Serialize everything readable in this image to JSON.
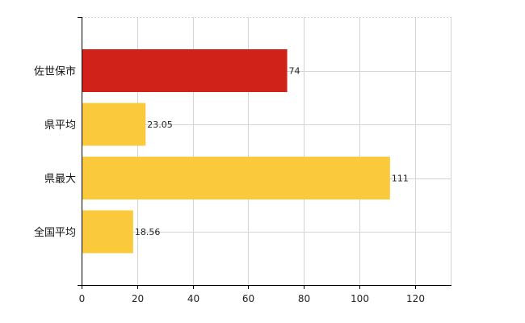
{
  "chart_data": {
    "type": "bar",
    "orientation": "horizontal",
    "title": "",
    "xlabel": "",
    "ylabel": "",
    "categories": [
      "佐世保市",
      "県平均",
      "県最大",
      "全国平均"
    ],
    "values": [
      74,
      23.05,
      111,
      18.56
    ],
    "value_labels": [
      "74",
      "23.05",
      "111",
      "18.56"
    ],
    "bar_colors": [
      "#d1221a",
      "#fac93c",
      "#fac93c",
      "#fac93c"
    ],
    "xlim": [
      0,
      133
    ],
    "xticks": [
      0,
      20,
      40,
      60,
      80,
      100,
      120
    ],
    "grid": true,
    "legend": "none"
  }
}
